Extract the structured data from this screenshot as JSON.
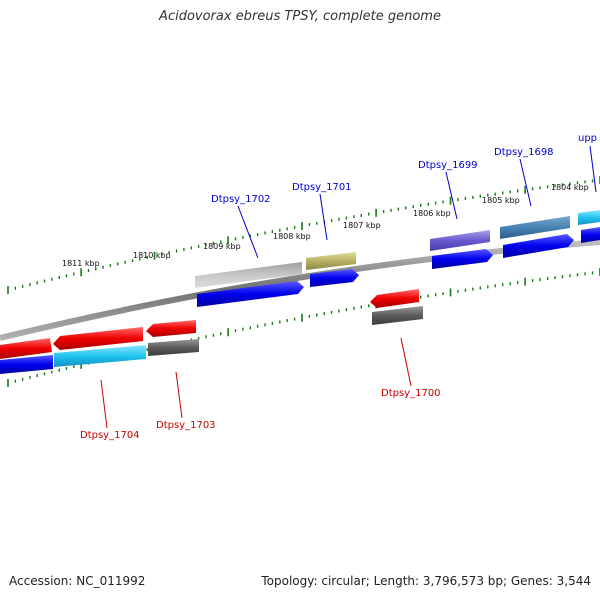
{
  "title": "Acidovorax ebreus TPSY, complete genome",
  "footer": {
    "accession": "Accession: NC_011992",
    "summary": "Topology: circular; Length: 3,796,573 bp; Genes: 3,544"
  },
  "colors": {
    "backbone": "#8a8a8a",
    "tick": "#1a7a1a",
    "label_forward": "#0000cc",
    "label_reverse": "#cc0000"
  },
  "scale_labels": [
    "1811 kbp",
    "1810 kbp",
    "1809 kbp",
    "1808 kbp",
    "1807 kbp",
    "1806 kbp",
    "1805 kbp",
    "1804 kbp"
  ],
  "gene_labels": {
    "forward": [
      "Dtpsy_1702",
      "Dtpsy_1701",
      "Dtpsy_1699",
      "Dtpsy_1698",
      "upp"
    ],
    "reverse": [
      "Dtpsy_1704",
      "Dtpsy_1703",
      "Dtpsy_1700"
    ]
  }
}
